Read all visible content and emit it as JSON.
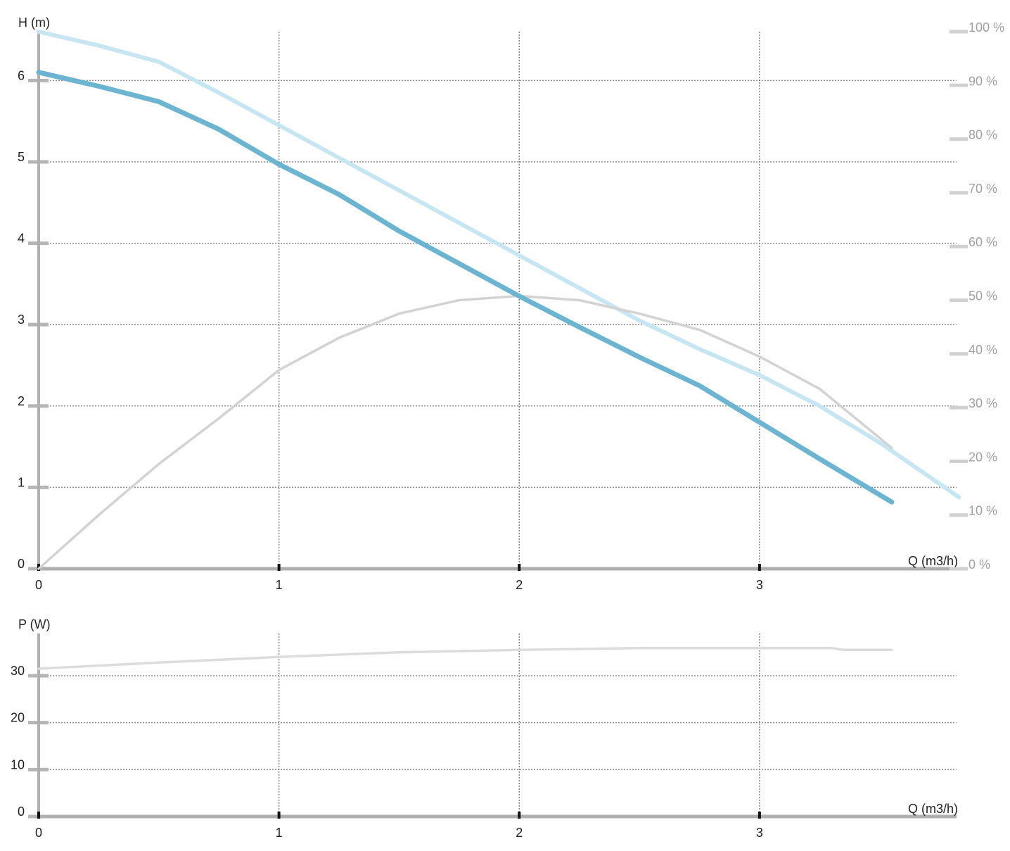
{
  "chart_data": [
    {
      "type": "line",
      "y_label": "H (m)",
      "x_label": "Q (m3/h)",
      "xlim": [
        0,
        3.82
      ],
      "xticks": [
        0,
        1,
        2,
        3
      ],
      "ylim": [
        0,
        6.6
      ],
      "yticks": [
        0,
        1,
        2,
        3,
        4,
        5,
        6
      ],
      "y2lim": [
        0,
        100
      ],
      "y2ticks": [
        {
          "value": 0,
          "label": "0 %"
        },
        {
          "value": 10,
          "label": "10 %"
        },
        {
          "value": 20,
          "label": "20 %"
        },
        {
          "value": 30,
          "label": "30 %"
        },
        {
          "value": 40,
          "label": "40 %"
        },
        {
          "value": 50,
          "label": "50 %"
        },
        {
          "value": 60,
          "label": "60 %"
        },
        {
          "value": 70,
          "label": "70 %"
        },
        {
          "value": 80,
          "label": "80 %"
        },
        {
          "value": 90,
          "label": "90 %"
        },
        {
          "value": 100,
          "label": "100 %"
        }
      ],
      "grid": true,
      "series": [
        {
          "color": "#c8e6f2",
          "style": "dotted",
          "x": [
            0,
            0.25,
            0.5,
            0.75,
            1,
            1.25,
            1.5,
            1.75,
            2,
            2.25,
            2.5,
            2.75,
            3,
            3.25,
            3.5,
            3.83
          ],
          "values": [
            6.6,
            6.43,
            6.23,
            5.85,
            5.45,
            5.05,
            4.65,
            4.25,
            3.85,
            3.45,
            3.05,
            2.7,
            2.38,
            2.0,
            1.55,
            0.88
          ]
        },
        {
          "color": "#d3d3d3",
          "style": "thin",
          "axis": "y2",
          "x": [
            0,
            0.25,
            0.5,
            0.75,
            1,
            1.25,
            1.5,
            1.75,
            2,
            2.25,
            2.5,
            2.75,
            3,
            3.25,
            3.55
          ],
          "values": [
            0,
            10,
            19.5,
            28,
            37,
            43,
            47.5,
            50,
            50.8,
            50,
            47.5,
            44.5,
            39.5,
            33.5,
            22.5
          ]
        },
        {
          "color": "#6cb4cf",
          "style": "thick",
          "x": [
            0,
            0.25,
            0.5,
            0.75,
            1,
            1.25,
            1.5,
            1.75,
            2,
            2.25,
            2.5,
            2.75,
            3,
            3.25,
            3.55
          ],
          "values": [
            6.1,
            5.93,
            5.74,
            5.4,
            4.97,
            4.6,
            4.15,
            3.75,
            3.35,
            2.97,
            2.6,
            2.25,
            1.8,
            1.35,
            0.82
          ]
        }
      ]
    },
    {
      "type": "line",
      "y_label": "P (W)",
      "x_label": "Q (m3/h)",
      "xlim": [
        0,
        3.82
      ],
      "xticks": [
        0,
        1,
        2,
        3
      ],
      "ylim": [
        0,
        39
      ],
      "yticks": [
        0,
        10,
        20,
        30
      ],
      "grid": true,
      "series": [
        {
          "color": "#dcdcdc",
          "style": "thin",
          "x": [
            0,
            0.5,
            1,
            1.5,
            2,
            2.5,
            3,
            3.3,
            3.35,
            3.55
          ],
          "values": [
            31.5,
            32.8,
            34,
            35,
            35.5,
            35.9,
            35.9,
            35.9,
            35.5,
            35.5
          ]
        }
      ]
    }
  ]
}
